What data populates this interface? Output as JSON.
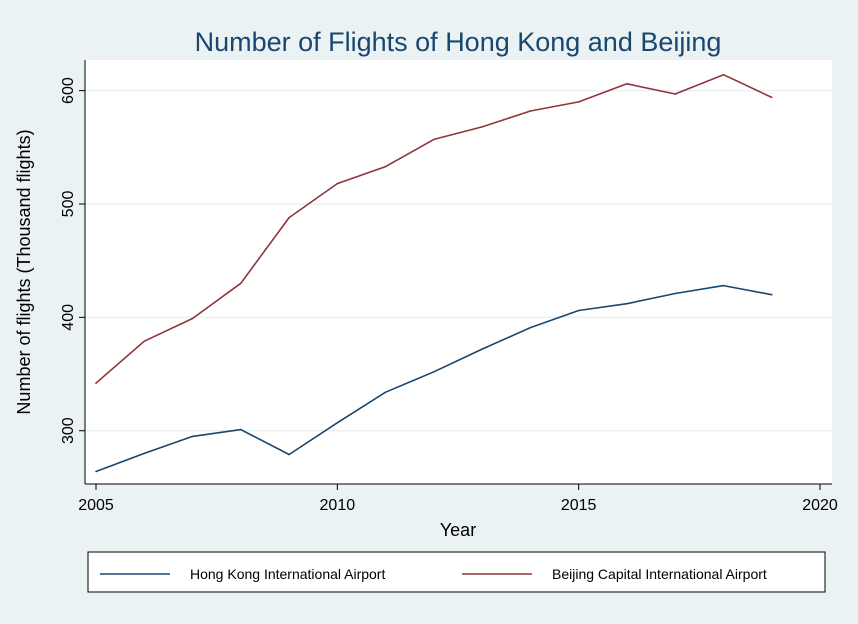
{
  "chart_data": {
    "type": "line",
    "title": "Number of Flights of Hong Kong and Beijing",
    "xlabel": "Year",
    "ylabel": "Number of flights (Thousand flights)",
    "xlim": [
      2005,
      2020
    ],
    "ylim": [
      253,
      627
    ],
    "xticks": [
      2005,
      2010,
      2015,
      2020
    ],
    "yticks": [
      300,
      400,
      500,
      600
    ],
    "grid": true,
    "legend_position": "bottom",
    "x": [
      2005,
      2006,
      2007,
      2008,
      2009,
      2010,
      2011,
      2012,
      2013,
      2014,
      2015,
      2016,
      2017,
      2018,
      2019
    ],
    "series": [
      {
        "name": "Hong Kong International Airport",
        "color": "#1A476F",
        "values": [
          264,
          280,
          295,
          301,
          279,
          307,
          334,
          352,
          372,
          391,
          406,
          412,
          421,
          428,
          420
        ]
      },
      {
        "name": "Beijing Capital International Airport",
        "color": "#90353B",
        "values": [
          342,
          379,
          399,
          430,
          488,
          518,
          533,
          557,
          568,
          582,
          590,
          606,
          597,
          614,
          594
        ]
      }
    ]
  }
}
